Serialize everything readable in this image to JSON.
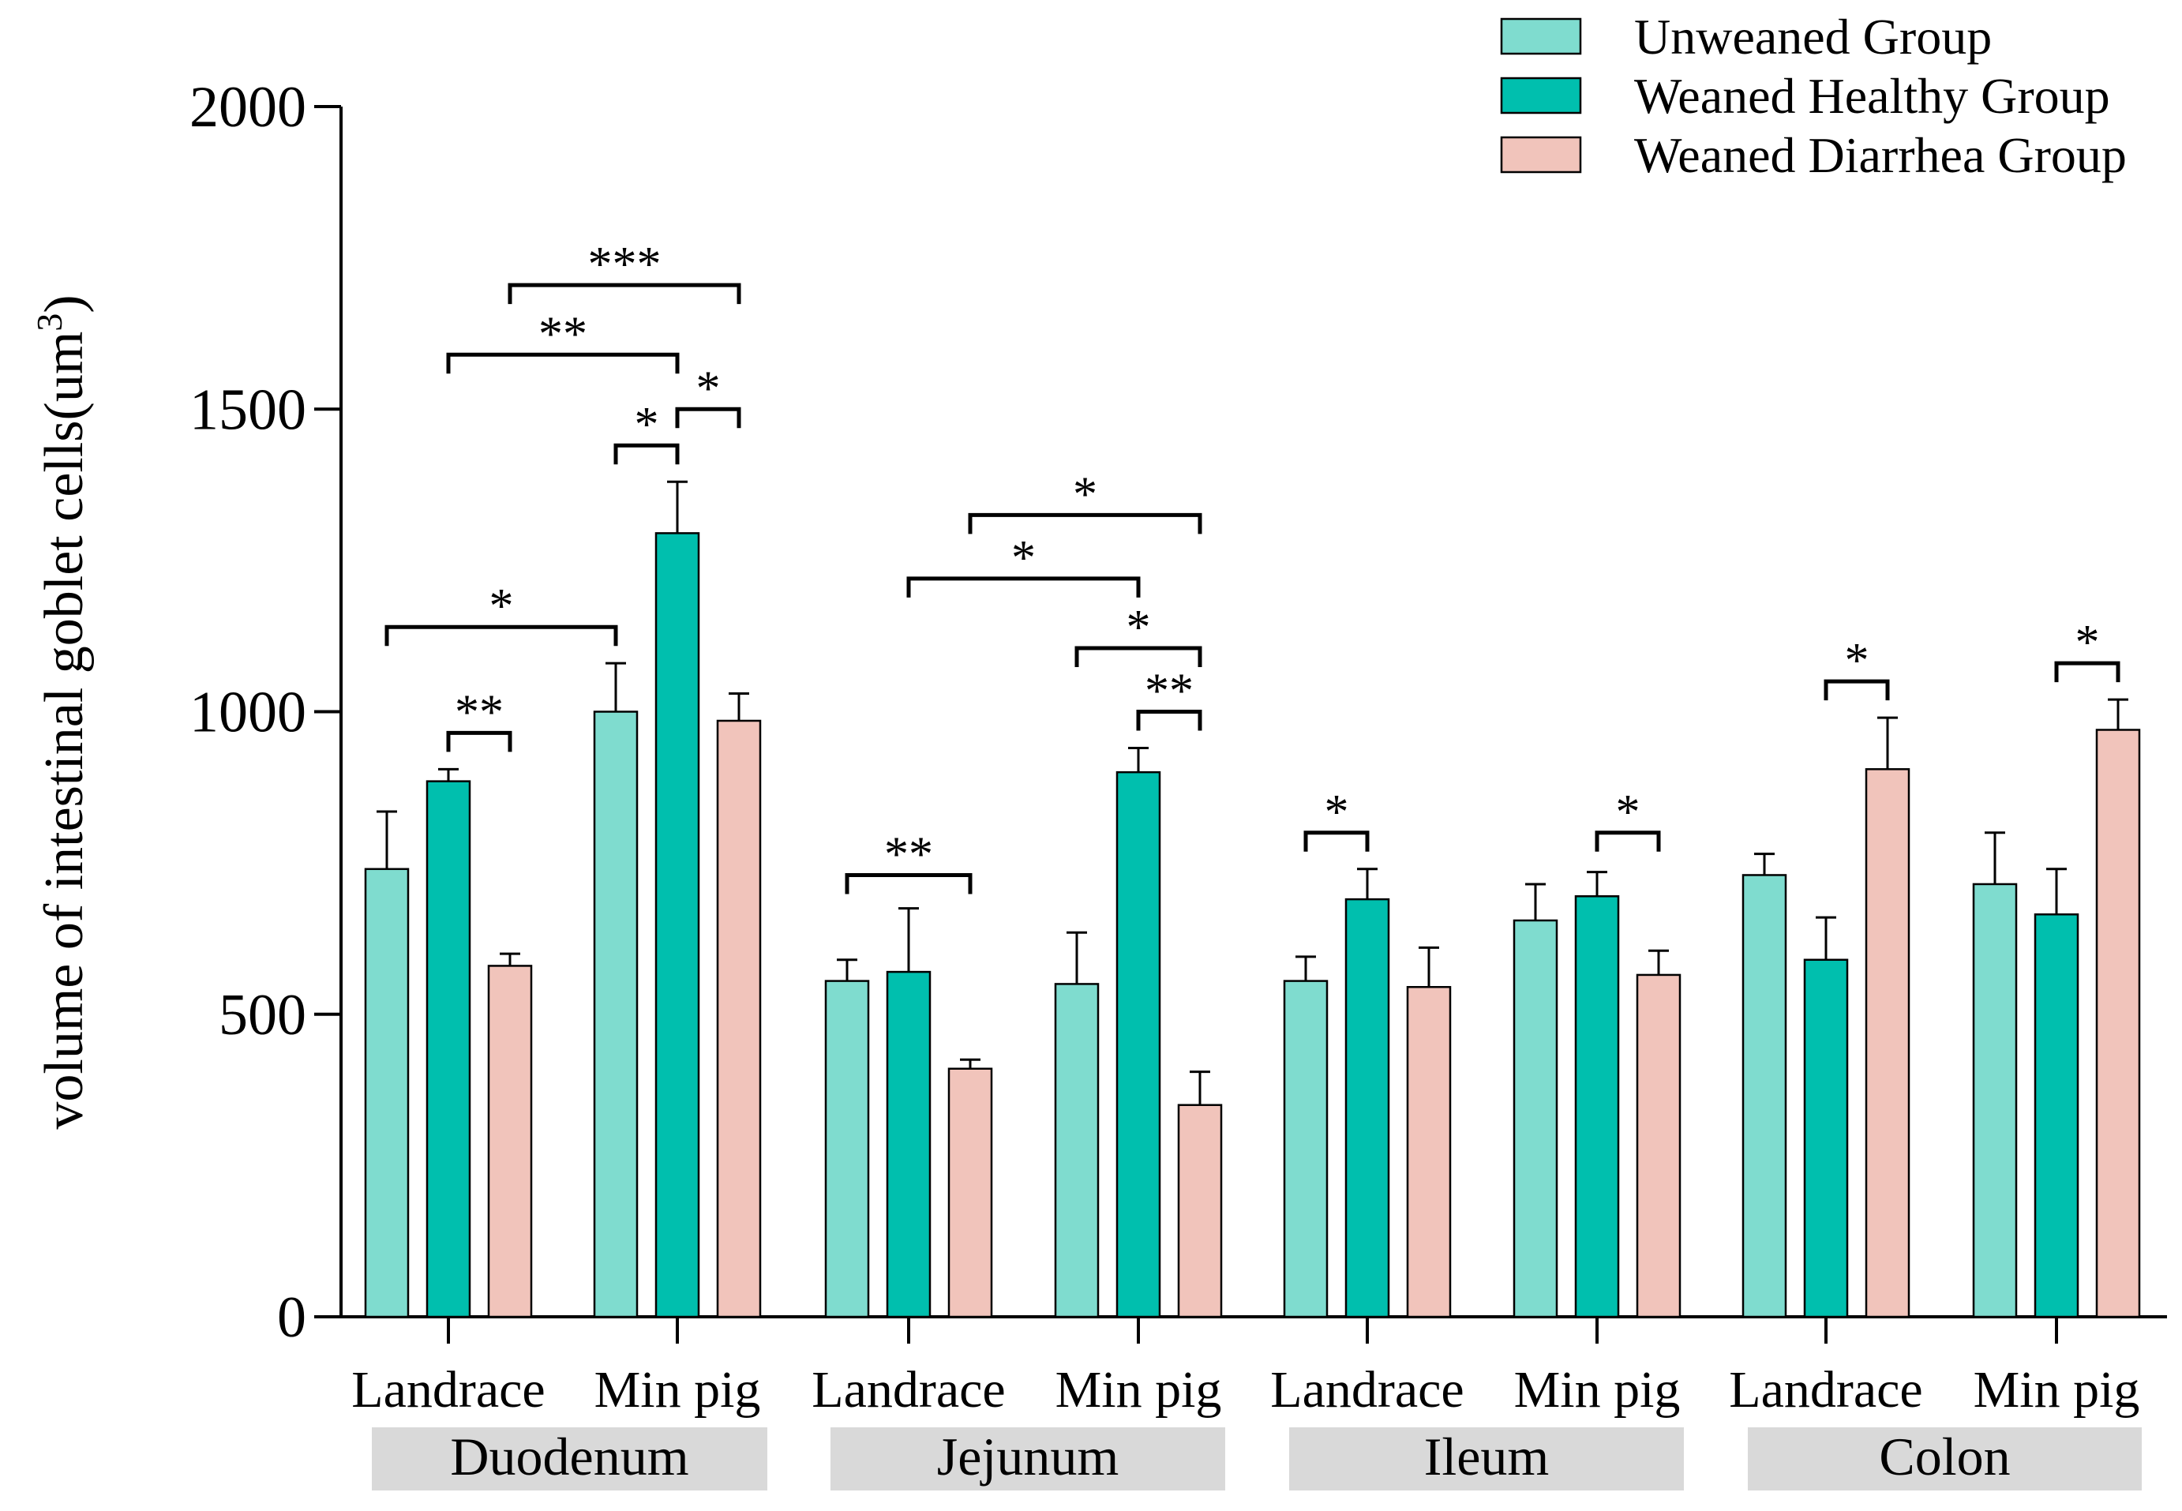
{
  "chart_data": {
    "type": "bar",
    "ylabel": "volume of intestinal goblet cells(um",
    "ylabel_sup": "3",
    "ylabel_close": ")",
    "ylim": [
      0,
      2000
    ],
    "yticks": [
      0,
      500,
      1000,
      1500,
      2000
    ],
    "regions": [
      "Duodenum",
      "Jejunum",
      "Ileum",
      "Colon"
    ],
    "breeds": [
      "Landrace",
      "Min pig",
      "Landrace",
      "Min pig",
      "Landrace",
      "Min pig",
      "Landrace",
      "Min pig"
    ],
    "series": [
      {
        "name": "Unweaned Group",
        "color": "#7fdccf",
        "values": [
          740,
          1000,
          555,
          550,
          555,
          655,
          730,
          715
        ],
        "errors": [
          95,
          80,
          35,
          85,
          40,
          60,
          35,
          85
        ]
      },
      {
        "name": "Weaned Healthy Group",
        "color": "#00bfae",
        "values": [
          885,
          1295,
          570,
          900,
          690,
          695,
          590,
          665
        ],
        "errors": [
          20,
          85,
          105,
          40,
          50,
          40,
          70,
          75
        ]
      },
      {
        "name": "Weaned Diarrhea Group",
        "color": "#f1c4bb",
        "values": [
          580,
          985,
          410,
          350,
          545,
          565,
          905,
          970
        ],
        "errors": [
          20,
          45,
          15,
          55,
          65,
          40,
          85,
          50
        ]
      }
    ],
    "significance": [
      {
        "g1": 0,
        "s1": 1,
        "g2": 0,
        "s2": 2,
        "y": 965,
        "label": "**"
      },
      {
        "g1": 0,
        "s1": 0,
        "g2": 1,
        "s2": 0,
        "y": 1140,
        "label": "*"
      },
      {
        "g1": 1,
        "s1": 0,
        "g2": 1,
        "s2": 1,
        "y": 1440,
        "label": "*"
      },
      {
        "g1": 1,
        "s1": 1,
        "g2": 1,
        "s2": 2,
        "y": 1500,
        "label": "*"
      },
      {
        "g1": 0,
        "s1": 1,
        "g2": 1,
        "s2": 1,
        "y": 1590,
        "label": "**"
      },
      {
        "g1": 0,
        "s1": 2,
        "g2": 1,
        "s2": 2,
        "y": 1705,
        "label": "***"
      },
      {
        "g1": 2,
        "s1": 0,
        "g2": 2,
        "s2": 2,
        "y": 730,
        "label": "**"
      },
      {
        "g1": 3,
        "s1": 1,
        "g2": 3,
        "s2": 2,
        "y": 1000,
        "label": "**"
      },
      {
        "g1": 3,
        "s1": 0,
        "g2": 3,
        "s2": 2,
        "y": 1105,
        "label": "*"
      },
      {
        "g1": 2,
        "s1": 1,
        "g2": 3,
        "s2": 1,
        "y": 1220,
        "label": "*"
      },
      {
        "g1": 2,
        "s1": 2,
        "g2": 3,
        "s2": 2,
        "y": 1325,
        "label": "*"
      },
      {
        "g1": 4,
        "s1": 0,
        "g2": 4,
        "s2": 1,
        "y": 800,
        "label": "*"
      },
      {
        "g1": 5,
        "s1": 1,
        "g2": 5,
        "s2": 2,
        "y": 800,
        "label": "*"
      },
      {
        "g1": 6,
        "s1": 1,
        "g2": 6,
        "s2": 2,
        "y": 1050,
        "label": "*"
      },
      {
        "g1": 7,
        "s1": 1,
        "g2": 7,
        "s2": 2,
        "y": 1080,
        "label": "*"
      }
    ]
  }
}
